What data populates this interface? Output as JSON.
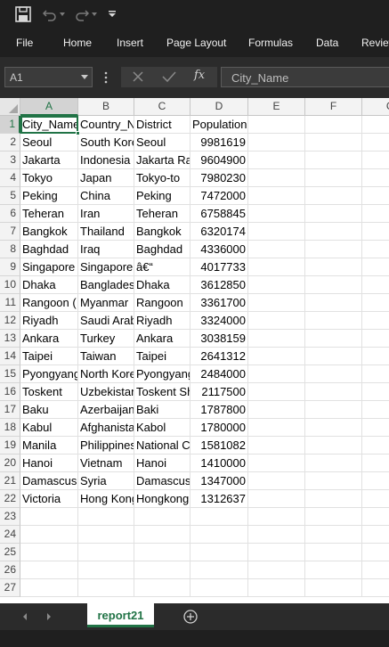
{
  "quick_access": {
    "icons": [
      "save-icon",
      "undo-icon",
      "redo-icon",
      "customize-icon"
    ]
  },
  "ribbon": {
    "tabs": [
      "File",
      "Home",
      "Insert",
      "Page Layout",
      "Formulas",
      "Data",
      "Review"
    ]
  },
  "formula_bar": {
    "name_box": "A1",
    "fx_label": "fx",
    "content": "City_Name"
  },
  "sheet": {
    "columns": [
      "A",
      "B",
      "C",
      "D",
      "E",
      "F",
      "G"
    ],
    "row_numbers": [
      "1",
      "2",
      "3",
      "4",
      "5",
      "6",
      "7",
      "8",
      "9",
      "10",
      "11",
      "12",
      "13",
      "14",
      "15",
      "16",
      "17",
      "18",
      "19",
      "20",
      "21",
      "22",
      "23",
      "24",
      "25",
      "26",
      "27"
    ],
    "rows": [
      [
        "City_Name",
        "Country_Name",
        "District",
        "Population"
      ],
      [
        "Seoul",
        "South Korea",
        "Seoul",
        "9981619"
      ],
      [
        "Jakarta",
        "Indonesia",
        "Jakarta Raya",
        "9604900"
      ],
      [
        "Tokyo",
        "Japan",
        "Tokyo-to",
        "7980230"
      ],
      [
        "Peking",
        "China",
        "Peking",
        "7472000"
      ],
      [
        "Teheran",
        "Iran",
        "Teheran",
        "6758845"
      ],
      [
        "Bangkok",
        "Thailand",
        "Bangkok",
        "6320174"
      ],
      [
        "Baghdad",
        "Iraq",
        "Baghdad",
        "4336000"
      ],
      [
        "Singapore",
        "Singapore",
        "â€“",
        "4017733"
      ],
      [
        "Dhaka",
        "Bangladesh",
        "Dhaka",
        "3612850"
      ],
      [
        "Rangoon (",
        "Myanmar",
        "Rangoon",
        "3361700"
      ],
      [
        "Riyadh",
        "Saudi Arabia",
        "Riyadh",
        "3324000"
      ],
      [
        "Ankara",
        "Turkey",
        "Ankara",
        "3038159"
      ],
      [
        "Taipei",
        "Taiwan",
        "Taipei",
        "2641312"
      ],
      [
        "Pyongyang",
        "North Korea",
        "Pyongyang",
        "2484000"
      ],
      [
        "Toskent",
        "Uzbekistan",
        "Toskent Shahri",
        "2117500"
      ],
      [
        "Baku",
        "Azerbaijan",
        "Baki",
        "1787800"
      ],
      [
        "Kabul",
        "Afghanistan",
        "Kabol",
        "1780000"
      ],
      [
        "Manila",
        "Philippines",
        "National Capital Reg",
        "1581082"
      ],
      [
        "Hanoi",
        "Vietnam",
        "Hanoi",
        "1410000"
      ],
      [
        "Damascus",
        "Syria",
        "Damascus",
        "1347000"
      ],
      [
        "Victoria",
        "Hong Kong",
        "Hongkong",
        "1312637"
      ]
    ],
    "selected_cell": "A1"
  },
  "sheet_tabs": {
    "active": "report21"
  },
  "colors": {
    "accent": "#217346",
    "dark_bar": "#1f1f1f"
  }
}
